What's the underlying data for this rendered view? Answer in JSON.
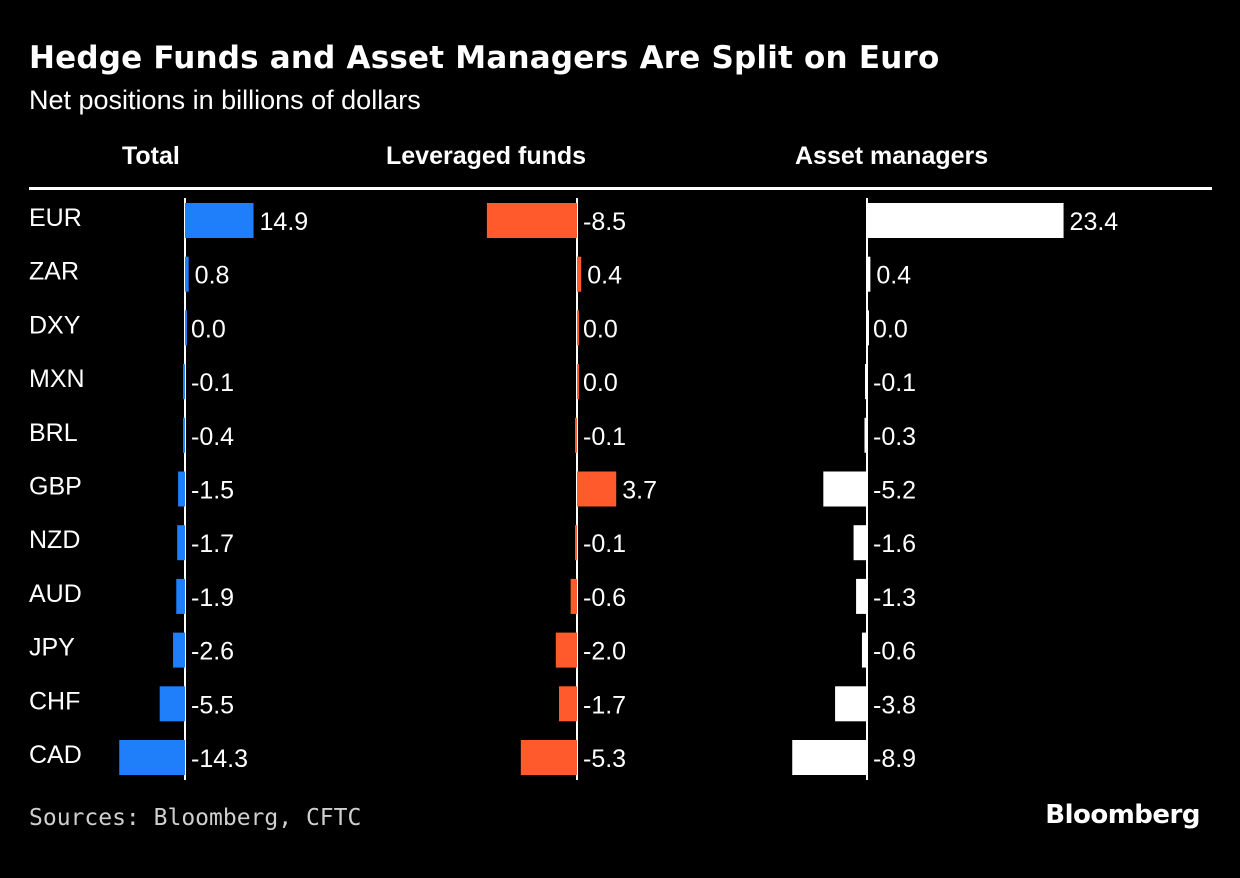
{
  "title": "Hedge Funds and Asset Managers Are Split on Euro",
  "subtitle": "Net positions in billions of dollars",
  "source": "Sources: Bloomberg, CFTC",
  "brand": "Bloomberg",
  "chart_data": {
    "type": "bar",
    "orientation": "horizontal",
    "categories": [
      "EUR",
      "ZAR",
      "DXY",
      "MXN",
      "BRL",
      "GBP",
      "NZD",
      "AUD",
      "JPY",
      "CHF",
      "CAD"
    ],
    "series": [
      {
        "name": "Total",
        "color": "#1f7ef9",
        "values": [
          14.9,
          0.8,
          0.0,
          -0.1,
          -0.4,
          -1.5,
          -1.7,
          -1.9,
          -2.6,
          -5.5,
          -14.3
        ],
        "labels": [
          "14.9",
          "0.8",
          "0.0",
          "-0.1",
          "-0.4",
          "-1.5",
          "-1.7",
          "-1.9",
          "-2.6",
          "-5.5",
          "-14.3"
        ]
      },
      {
        "name": "Leveraged funds",
        "color": "#ff5a2b",
        "values": [
          -8.5,
          0.4,
          0.0,
          0.0,
          -0.1,
          3.7,
          -0.1,
          -0.6,
          -2.0,
          -1.7,
          -5.3
        ],
        "labels": [
          "-8.5",
          "0.4",
          "0.0",
          "0.0",
          "-0.1",
          "3.7",
          "-0.1",
          "-0.6",
          "-2.0",
          "-1.7",
          "-5.3"
        ]
      },
      {
        "name": "Asset managers",
        "color": "#ffffff",
        "values": [
          23.4,
          0.4,
          0.0,
          -0.1,
          -0.3,
          -5.2,
          -1.6,
          -1.3,
          -0.6,
          -3.8,
          -8.9
        ],
        "labels": [
          "23.4",
          "0.4",
          "0.0",
          "-0.1",
          "-0.3",
          "-5.2",
          "-1.6",
          "-1.3",
          "-0.6",
          "-3.8",
          "-8.9"
        ]
      }
    ],
    "grid": false,
    "legend": "none (column headers)"
  }
}
